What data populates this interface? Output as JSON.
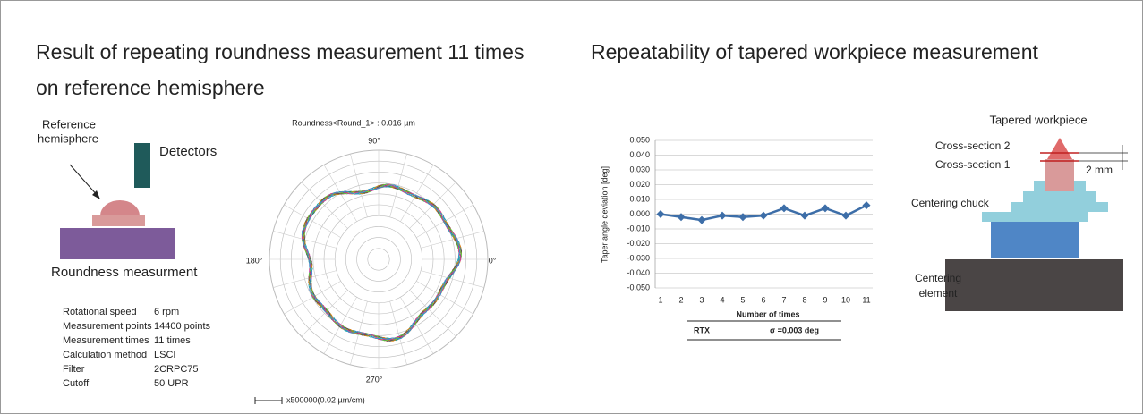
{
  "left": {
    "title_line1": "Result of repeating roundness measurement 11 times",
    "title_line2": "on reference hemisphere",
    "reference_label_1": "Reference",
    "reference_label_2": "hemisphere",
    "detectors_label": "Detectors",
    "caption": "Roundness measurment",
    "params": [
      [
        "Rotational speed",
        "6 rpm"
      ],
      [
        "Measurement points",
        "14400 points"
      ],
      [
        "Measurement times",
        "11 times"
      ],
      [
        "Calculation method",
        "LSCI"
      ],
      [
        "Filter",
        "2CRPC75"
      ],
      [
        "Cutoff",
        "50 UPR"
      ]
    ],
    "polar": {
      "title": "Roundness<Round_1> : 0.016 µm",
      "angle_top": "90°",
      "angle_left": "180°",
      "angle_right": "0°",
      "angle_bottom": "270°",
      "scale": "x500000(0.02 µm/cm)"
    }
  },
  "right": {
    "title": "Repeatability of tapered workpiece measurement",
    "diagram": {
      "title": "Tapered workpiece",
      "section2": "Cross-section 2",
      "section1": "Cross-section 1",
      "distance": "2 mm",
      "chuck": "Centering chuck",
      "element_1": "Centering",
      "element_2": "element"
    }
  },
  "chart_data": {
    "type": "line",
    "y_label": "Taper angle deviation [deg]",
    "x_label": "Number of times",
    "categories": [
      "1",
      "2",
      "3",
      "4",
      "5",
      "6",
      "7",
      "8",
      "9",
      "10",
      "11"
    ],
    "values": [
      0.0,
      -0.002,
      -0.004,
      -0.001,
      -0.002,
      -0.001,
      0.004,
      -0.001,
      0.004,
      -0.001,
      0.006
    ],
    "color": "#3d6ea8",
    "ylim": [
      -0.05,
      0.05
    ],
    "yticks": [
      {
        "value": -0.05,
        "label": "-0.050"
      },
      {
        "value": -0.04,
        "label": "-0.040"
      },
      {
        "value": -0.03,
        "label": "-0.030"
      },
      {
        "value": -0.02,
        "label": "-0.020"
      },
      {
        "value": -0.01,
        "label": "-0.010"
      },
      {
        "value": 0,
        "label": "0.000"
      },
      {
        "value": 0.01,
        "label": "0.010"
      },
      {
        "value": 0.02,
        "label": "0.020"
      },
      {
        "value": 0.03,
        "label": "0.030"
      },
      {
        "value": 0.04,
        "label": "0.040"
      },
      {
        "value": 0.05,
        "label": "0.050"
      }
    ],
    "grid": true,
    "footer_name": "RTX",
    "footer_value": "σ =0.003 deg"
  }
}
